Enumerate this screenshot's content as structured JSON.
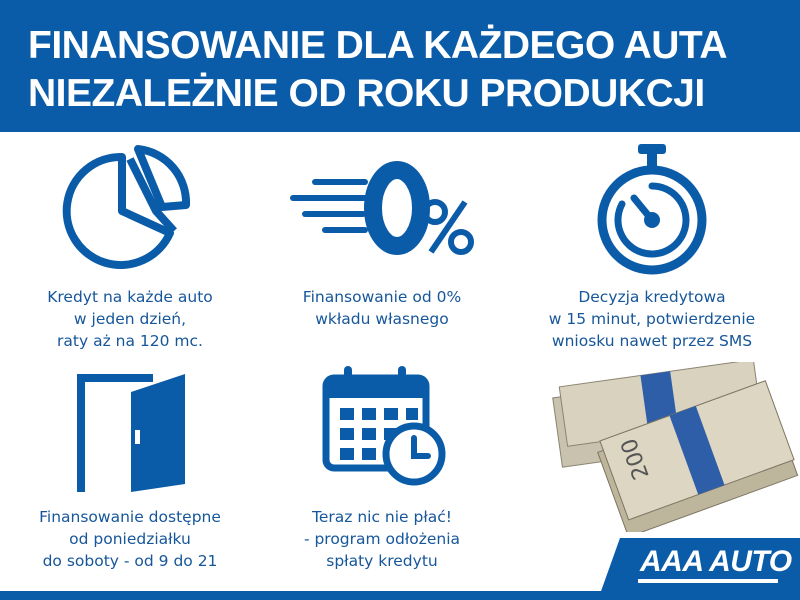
{
  "header": {
    "line1": "FINANSOWANIE DLA KAŻDEGO AUTA",
    "line2": "NIEZALEŻNIE OD ROKU PRODUKCJI"
  },
  "features": [
    {
      "icon": "pie-chart-icon",
      "lines": [
        "Kredyt na każde auto",
        "w jeden dzień,",
        "raty aż na 120 mc."
      ]
    },
    {
      "icon": "zero-percent-icon",
      "lines": [
        "Finansowanie od 0%",
        "wkładu własnego"
      ]
    },
    {
      "icon": "stopwatch-icon",
      "lines": [
        "Decyzja kredytowa",
        "w 15 minut, potwierdzenie",
        "wniosku nawet przez SMS"
      ]
    },
    {
      "icon": "door-icon",
      "lines": [
        "Finansowanie dostępne",
        "od poniedziałku",
        "do soboty - od 9 do 21"
      ]
    },
    {
      "icon": "calendar-clock-icon",
      "lines": [
        "Teraz nic nie płać!",
        "- program odłożenia",
        "spłaty kredytu"
      ]
    }
  ],
  "money_image": {
    "icon": "banknotes-stack-icon",
    "note_value": "200"
  },
  "brand": {
    "name": "AAA AUTO"
  },
  "colors": {
    "primary": "#0b5ca8",
    "text": "#16569a"
  }
}
